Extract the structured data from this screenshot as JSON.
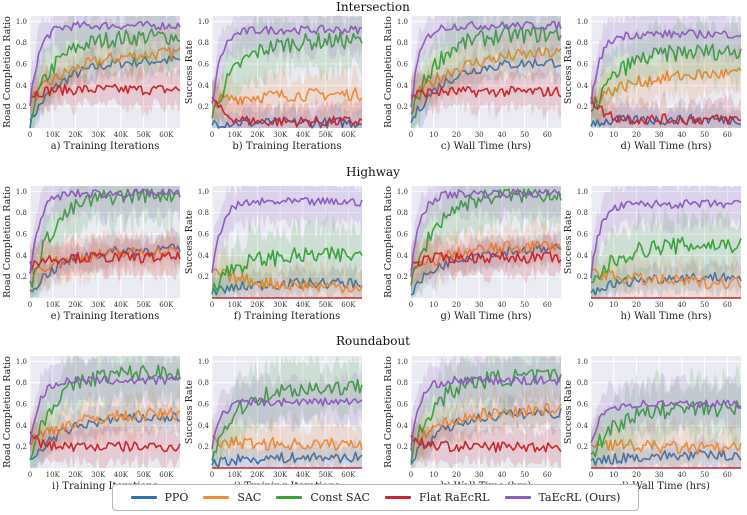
{
  "chart_data": {
    "type": "line",
    "colors": {
      "PPO": "#2f6fb3",
      "SAC": "#f08a35",
      "Const SAC": "#3aa33a",
      "Flat RaEcRL": "#c8272d",
      "TaEcRL (Ours)": "#8e5bbf"
    },
    "series_order": [
      "PPO",
      "SAC",
      "Const SAC",
      "Flat RaEcRL",
      "TaEcRL (Ours)"
    ],
    "rows": [
      {
        "title": "Intersection",
        "panels": [
          {
            "caption": "a) Training Iterations",
            "ylabel": "Road Completion Ratio",
            "xticks": [
              "0",
              "10K",
              "20K",
              "30K",
              "40K",
              "50K",
              "60K"
            ],
            "yticks": [
              "0.2",
              "0.4",
              "0.6",
              "0.8",
              "1.0"
            ],
            "ylim": [
              0,
              1.05
            ],
            "finals": {
              "PPO": 0.64,
              "SAC": 0.72,
              "Const SAC": 0.86,
              "Flat RaEcRL": 0.36,
              "TaEcRL (Ours)": 0.96
            }
          },
          {
            "caption": "b) Training Iterations",
            "ylabel": "Success Rate",
            "xticks": [
              "0",
              "10K",
              "20K",
              "30K",
              "40K",
              "50K",
              "60K"
            ],
            "yticks": [
              "0.2",
              "0.4",
              "0.6",
              "0.8",
              "1.0"
            ],
            "ylim": [
              0,
              1.05
            ],
            "finals": {
              "PPO": 0.05,
              "SAC": 0.32,
              "Const SAC": 0.82,
              "Flat RaEcRL": 0.06,
              "TaEcRL (Ours)": 0.92
            }
          },
          {
            "caption": "c) Wall Time (hrs)",
            "ylabel": "Road Completion Ratio",
            "xticks": [
              "0",
              "10",
              "20",
              "30",
              "40",
              "50",
              "60"
            ],
            "yticks": [
              "0.2",
              "0.4",
              "0.6",
              "0.8",
              "1.0"
            ],
            "ylim": [
              0,
              1.05
            ],
            "finals": {
              "PPO": 0.62,
              "SAC": 0.72,
              "Const SAC": 0.88,
              "Flat RaEcRL": 0.34,
              "TaEcRL (Ours)": 0.96
            }
          },
          {
            "caption": "d) Wall Time (hrs)",
            "ylabel": "Success Rate",
            "xticks": [
              "0",
              "10",
              "20",
              "30",
              "40",
              "50",
              "60"
            ],
            "yticks": [
              "0.2",
              "0.4",
              "0.6",
              "0.8",
              "1.0"
            ],
            "ylim": [
              0,
              1.05
            ],
            "finals": {
              "PPO": 0.08,
              "SAC": 0.52,
              "Const SAC": 0.72,
              "Flat RaEcRL": 0.08,
              "TaEcRL (Ours)": 0.88
            }
          }
        ]
      },
      {
        "title": "Highway",
        "panels": [
          {
            "caption": "e) Training Iterations",
            "ylabel": "Road Completion Ratio",
            "xticks": [
              "0",
              "10K",
              "20K",
              "30K",
              "40K",
              "50K",
              "60K"
            ],
            "yticks": [
              "0.2",
              "0.4",
              "0.6",
              "0.8",
              "1.0"
            ],
            "ylim": [
              0,
              1.05
            ],
            "finals": {
              "PPO": 0.46,
              "SAC": 0.44,
              "Const SAC": 0.98,
              "Flat RaEcRL": 0.38,
              "TaEcRL (Ours)": 0.98
            }
          },
          {
            "caption": "f)  Training Iterations",
            "ylabel": "Success Rate",
            "xticks": [
              "0",
              "10K",
              "20K",
              "30K",
              "40K",
              "50K",
              "60K"
            ],
            "yticks": [
              "0.2",
              "0.4",
              "0.6",
              "0.8",
              "1.0"
            ],
            "ylim": [
              0,
              1.05
            ],
            "finals": {
              "PPO": 0.14,
              "SAC": 0.1,
              "Const SAC": 0.4,
              "Flat RaEcRL": 0.0,
              "TaEcRL (Ours)": 0.9
            }
          },
          {
            "caption": "g)  Wall Time (hrs)",
            "ylabel": "Road Completion Ratio",
            "xticks": [
              "0",
              "10",
              "20",
              "30",
              "40",
              "50",
              "60"
            ],
            "yticks": [
              "0.2",
              "0.4",
              "0.6",
              "0.8",
              "1.0"
            ],
            "ylim": [
              0,
              1.05
            ],
            "finals": {
              "PPO": 0.46,
              "SAC": 0.5,
              "Const SAC": 0.98,
              "Flat RaEcRL": 0.38,
              "TaEcRL (Ours)": 0.98
            }
          },
          {
            "caption": "h)  Wall Time (hrs)",
            "ylabel": "Success Rate",
            "xticks": [
              "0",
              "10",
              "20",
              "30",
              "40",
              "50",
              "60"
            ],
            "yticks": [
              "0.2",
              "0.4",
              "0.6",
              "0.8",
              "1.0"
            ],
            "ylim": [
              0,
              1.05
            ],
            "finals": {
              "PPO": 0.2,
              "SAC": 0.14,
              "Const SAC": 0.5,
              "Flat RaEcRL": 0.0,
              "TaEcRL (Ours)": 0.88
            }
          }
        ]
      },
      {
        "title": "Roundabout",
        "panels": [
          {
            "caption": "i)  Training Iterations",
            "ylabel": "Road Completion Ratio",
            "xticks": [
              "0",
              "10K",
              "20K",
              "30K",
              "40K",
              "50K",
              "60K"
            ],
            "yticks": [
              "0.2",
              "0.4",
              "0.6",
              "0.8",
              "1.0"
            ],
            "ylim": [
              0,
              1.05
            ],
            "finals": {
              "PPO": 0.48,
              "SAC": 0.52,
              "Const SAC": 0.9,
              "Flat RaEcRL": 0.2,
              "TaEcRL (Ours)": 0.82
            }
          },
          {
            "caption": "j)  Training Iterations",
            "ylabel": "Success Rate",
            "xticks": [
              "0",
              "10K",
              "20K",
              "30K",
              "40K",
              "50K",
              "60K"
            ],
            "yticks": [
              "0.2",
              "0.4",
              "0.6",
              "0.8",
              "1.0"
            ],
            "ylim": [
              0,
              1.05
            ],
            "finals": {
              "PPO": 0.1,
              "SAC": 0.22,
              "Const SAC": 0.76,
              "Flat RaEcRL": 0.0,
              "TaEcRL (Ours)": 0.62
            }
          },
          {
            "caption": "k)  Wall Time (hrs)",
            "ylabel": "Road Completion Ratio",
            "xticks": [
              "0",
              "10",
              "20",
              "30",
              "40",
              "50",
              "60"
            ],
            "yticks": [
              "0.2",
              "0.4",
              "0.6",
              "0.8",
              "1.0"
            ],
            "ylim": [
              0,
              1.05
            ],
            "finals": {
              "PPO": 0.52,
              "SAC": 0.56,
              "Const SAC": 0.86,
              "Flat RaEcRL": 0.2,
              "TaEcRL (Ours)": 0.82
            }
          },
          {
            "caption": "l)  Wall Time (hrs)",
            "ylabel": "Success Rate",
            "xticks": [
              "0",
              "10",
              "20",
              "30",
              "40",
              "50",
              "60"
            ],
            "yticks": [
              "0.2",
              "0.4",
              "0.6",
              "0.8",
              "1.0"
            ],
            "ylim": [
              0,
              1.05
            ],
            "finals": {
              "PPO": 0.12,
              "SAC": 0.18,
              "Const SAC": 0.56,
              "Flat RaEcRL": 0.0,
              "TaEcRL (Ours)": 0.6
            }
          }
        ]
      }
    ],
    "legend": [
      "PPO",
      "SAC",
      "Const SAC",
      "Flat RaEcRL",
      "TaEcRL (Ours)"
    ]
  }
}
